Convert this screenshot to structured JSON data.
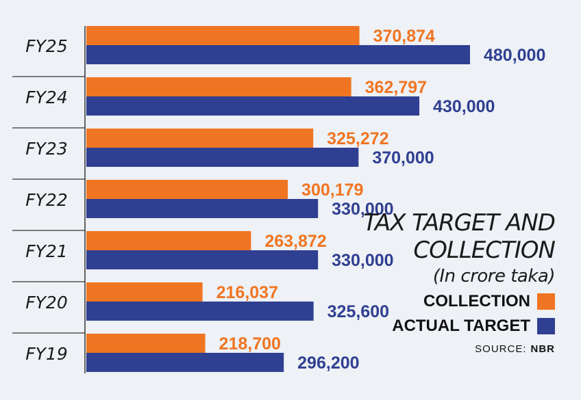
{
  "chart_data": {
    "type": "bar",
    "orientation": "horizontal",
    "title_lines": [
      "TAX TARGET AND",
      "COLLECTION"
    ],
    "subtitle": "(In crore taka)",
    "categories": [
      "FY25",
      "FY24",
      "FY23",
      "FY22",
      "FY21",
      "FY20",
      "FY19"
    ],
    "series": [
      {
        "name": "COLLECTION",
        "color": "#f07522",
        "values": [
          370874,
          362797,
          325272,
          300179,
          263872,
          216037,
          218700
        ],
        "labels": [
          "370,874",
          "362,797",
          "325,272",
          "300,179",
          "263,872",
          "216,037",
          "218,700"
        ]
      },
      {
        "name": "ACTUAL TARGET",
        "color": "#2f3f91",
        "values": [
          480000,
          430000,
          370000,
          330000,
          330000,
          325600,
          296200
        ],
        "labels": [
          "480,000",
          "430,000",
          "370,000",
          "330,000",
          "330,000",
          "325,600",
          "296,200"
        ]
      }
    ],
    "xlim": [
      100000,
      480000
    ],
    "legend_position": "right",
    "grid": false
  },
  "source": {
    "label": "SOURCE:",
    "name": "NBR"
  }
}
